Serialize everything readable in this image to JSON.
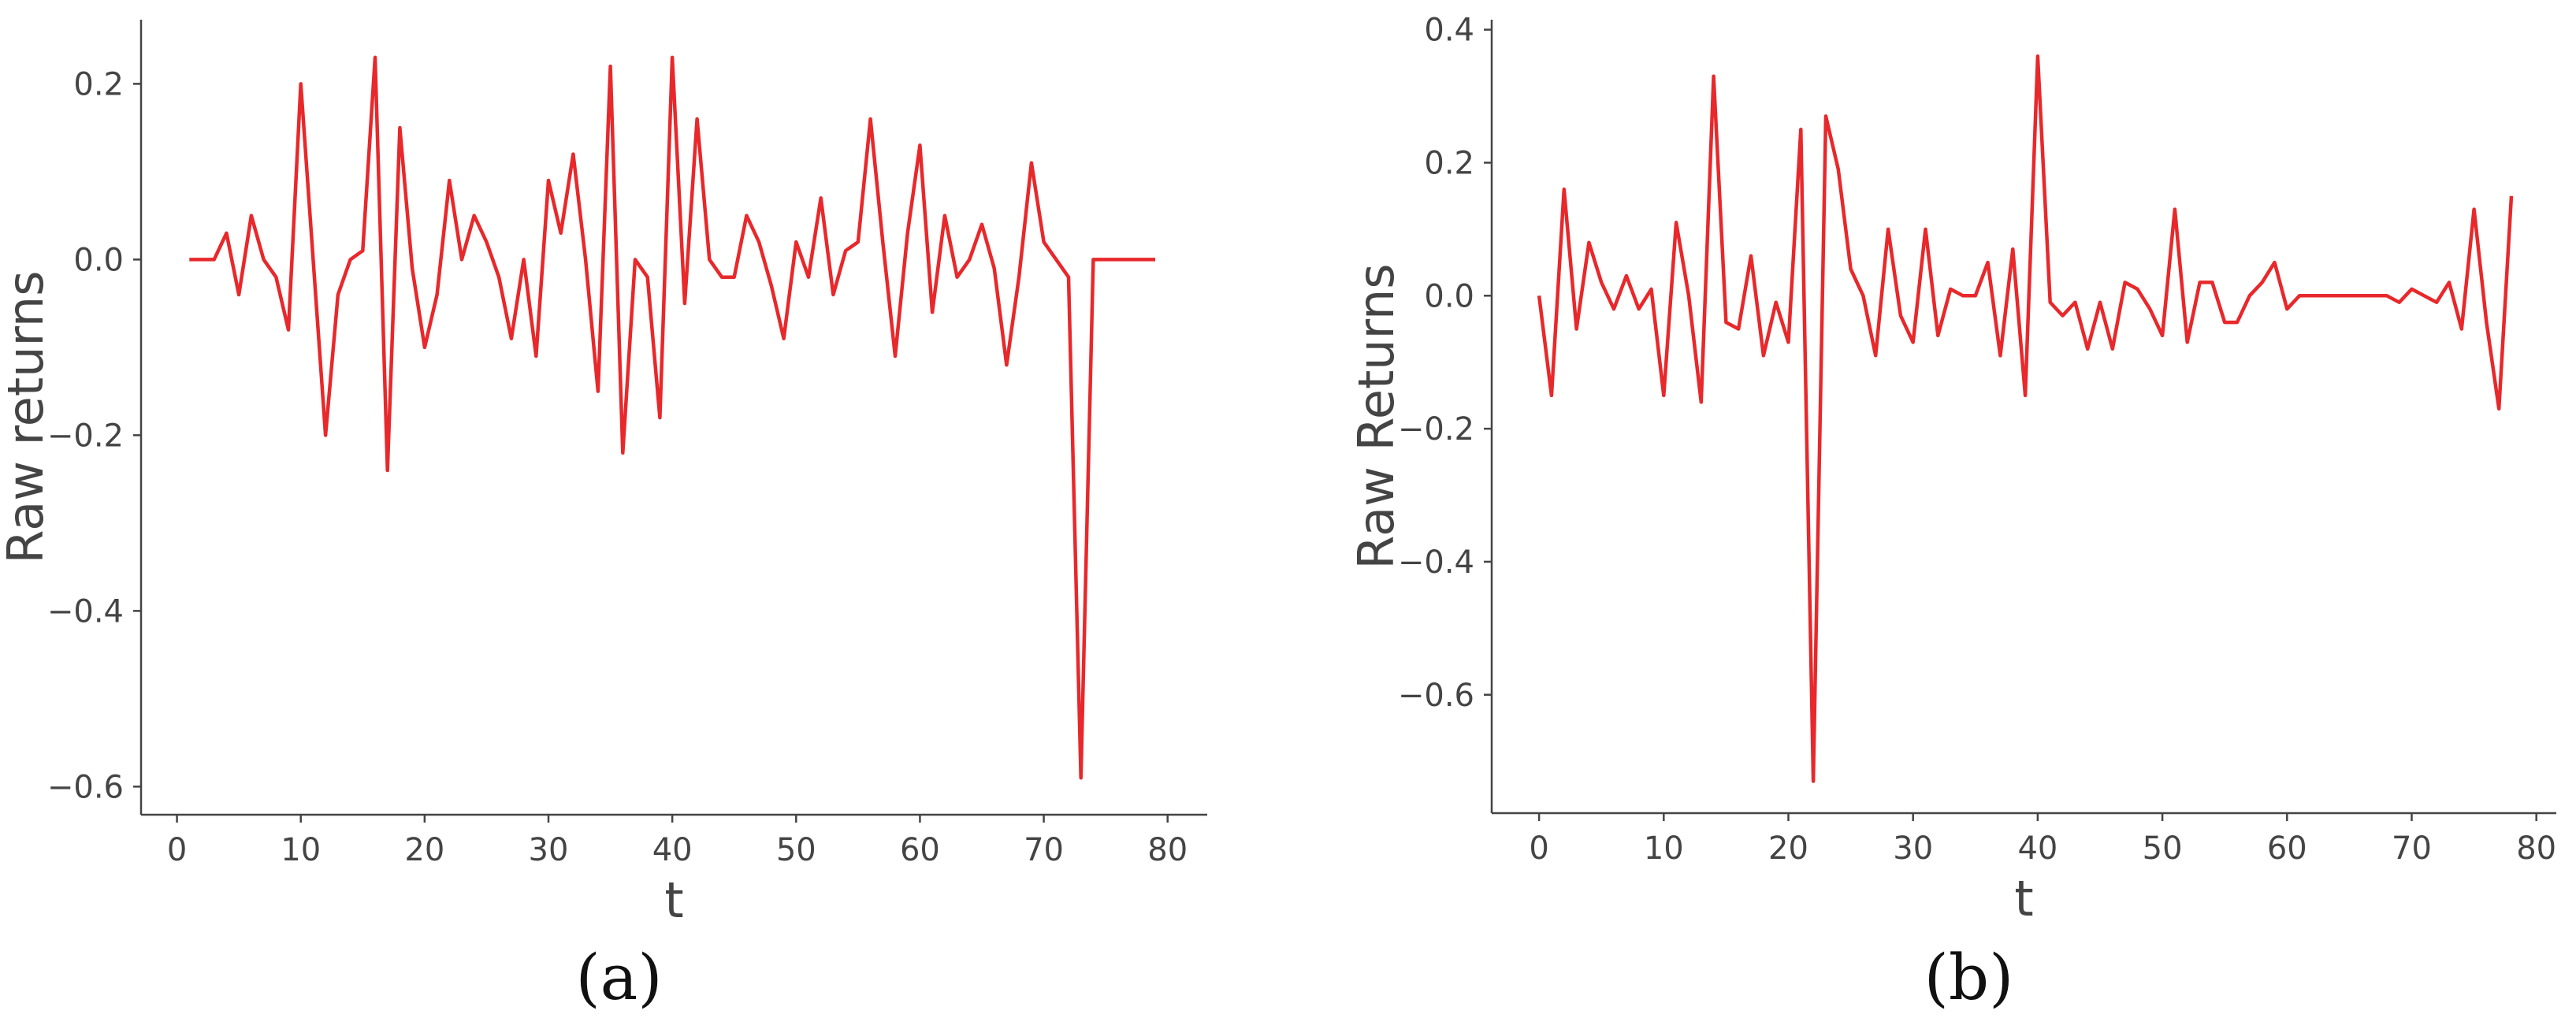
{
  "chart_data": [
    {
      "type": "line",
      "xlabel": "t",
      "ylabel": "Raw returns",
      "caption": "(a)",
      "x": [
        1,
        2,
        3,
        4,
        5,
        6,
        7,
        8,
        9,
        10,
        11,
        12,
        13,
        14,
        15,
        16,
        17,
        18,
        19,
        20,
        21,
        22,
        23,
        24,
        25,
        26,
        27,
        28,
        29,
        30,
        31,
        32,
        33,
        34,
        35,
        36,
        37,
        38,
        39,
        40,
        41,
        42,
        43,
        44,
        45,
        46,
        47,
        48,
        49,
        50,
        51,
        52,
        53,
        54,
        55,
        56,
        57,
        58,
        59,
        60,
        61,
        62,
        63,
        64,
        65,
        66,
        67,
        68,
        69,
        70,
        71,
        72,
        73,
        74,
        75,
        76,
        77,
        78,
        79
      ],
      "series": [
        {
          "color": "#e8282b",
          "values": [
            0,
            0,
            0,
            0.03,
            -0.04,
            0.05,
            0,
            -0.02,
            -0.08,
            0.2,
            0,
            -0.2,
            -0.04,
            0,
            0.01,
            0.23,
            -0.24,
            0.15,
            -0.01,
            -0.1,
            -0.04,
            0.09,
            0,
            0.05,
            0.02,
            -0.02,
            -0.09,
            0,
            -0.11,
            0.09,
            0.03,
            0.12,
            0,
            -0.15,
            0.22,
            -0.22,
            0,
            -0.02,
            -0.18,
            0.23,
            -0.05,
            0.16,
            0,
            -0.02,
            -0.02,
            0.05,
            0.02,
            -0.03,
            -0.09,
            0.02,
            -0.02,
            0.07,
            -0.04,
            0.01,
            0.02,
            0.16,
            0.02,
            -0.11,
            0.03,
            0.13,
            -0.06,
            0.05,
            -0.02,
            0,
            0.04,
            -0.01,
            -0.12,
            -0.02,
            0.11,
            0.02,
            0,
            -0.02,
            -0.59,
            0,
            0,
            0,
            0,
            0,
            0
          ]
        }
      ],
      "xlim": [
        -2.9,
        83.2
      ],
      "ylim": [
        -0.632,
        0.273
      ],
      "xticks": [
        0,
        10,
        20,
        30,
        40,
        50,
        60,
        70,
        80
      ],
      "yticks": [
        {
          "value": -0.6,
          "label": "−0.6"
        },
        {
          "value": -0.4,
          "label": "−0.4"
        },
        {
          "value": -0.2,
          "label": "−0.2"
        },
        {
          "value": 0,
          "label": "0.0"
        },
        {
          "value": 0.2,
          "label": "0.2"
        }
      ]
    },
    {
      "type": "line",
      "xlabel": "t",
      "ylabel": "Raw Returns",
      "caption": "(b)",
      "x": [
        0,
        1,
        2,
        3,
        4,
        5,
        6,
        7,
        8,
        9,
        10,
        11,
        12,
        13,
        14,
        15,
        16,
        17,
        18,
        19,
        20,
        21,
        22,
        23,
        24,
        25,
        26,
        27,
        28,
        29,
        30,
        31,
        32,
        33,
        34,
        35,
        36,
        37,
        38,
        39,
        40,
        41,
        42,
        43,
        44,
        45,
        46,
        47,
        48,
        49,
        50,
        51,
        52,
        53,
        54,
        55,
        56,
        57,
        58,
        59,
        60,
        61,
        62,
        63,
        64,
        65,
        66,
        67,
        68,
        69,
        70,
        71,
        72,
        73,
        74,
        75,
        76,
        77,
        78
      ],
      "series": [
        {
          "color": "#e8282b",
          "values": [
            0,
            -0.15,
            0.16,
            -0.05,
            0.08,
            0.02,
            -0.02,
            0.03,
            -0.02,
            0.01,
            -0.15,
            0.11,
            0,
            -0.16,
            0.33,
            -0.04,
            -0.05,
            0.06,
            -0.09,
            -0.01,
            -0.07,
            0.25,
            -0.73,
            0.27,
            0.19,
            0.04,
            0,
            -0.09,
            0.1,
            -0.03,
            -0.07,
            0.1,
            -0.06,
            0.01,
            0,
            0,
            0.05,
            -0.09,
            0.07,
            -0.15,
            0.36,
            -0.01,
            -0.03,
            -0.01,
            -0.08,
            -0.01,
            -0.08,
            0.02,
            0.01,
            -0.02,
            -0.06,
            0.13,
            -0.07,
            0.02,
            0.02,
            -0.04,
            -0.04,
            0,
            0.02,
            0.05,
            -0.02,
            0,
            0,
            0,
            0,
            0,
            0,
            0,
            0,
            -0.01,
            0.01,
            0,
            -0.01,
            0.02,
            -0.05,
            0.13,
            -0.04,
            -0.17,
            0.15
          ]
        }
      ],
      "xlim": [
        -3.8,
        81.6
      ],
      "ylim": [
        -0.778,
        0.415
      ],
      "xticks": [
        0,
        10,
        20,
        30,
        40,
        50,
        60,
        70,
        80
      ],
      "yticks": [
        {
          "value": -0.6,
          "label": "−0.6"
        },
        {
          "value": -0.4,
          "label": "−0.4"
        },
        {
          "value": -0.2,
          "label": "−0.2"
        },
        {
          "value": 0,
          "label": "0.0"
        },
        {
          "value": 0.2,
          "label": "0.2"
        },
        {
          "value": 0.4,
          "label": "0.4"
        }
      ]
    }
  ]
}
